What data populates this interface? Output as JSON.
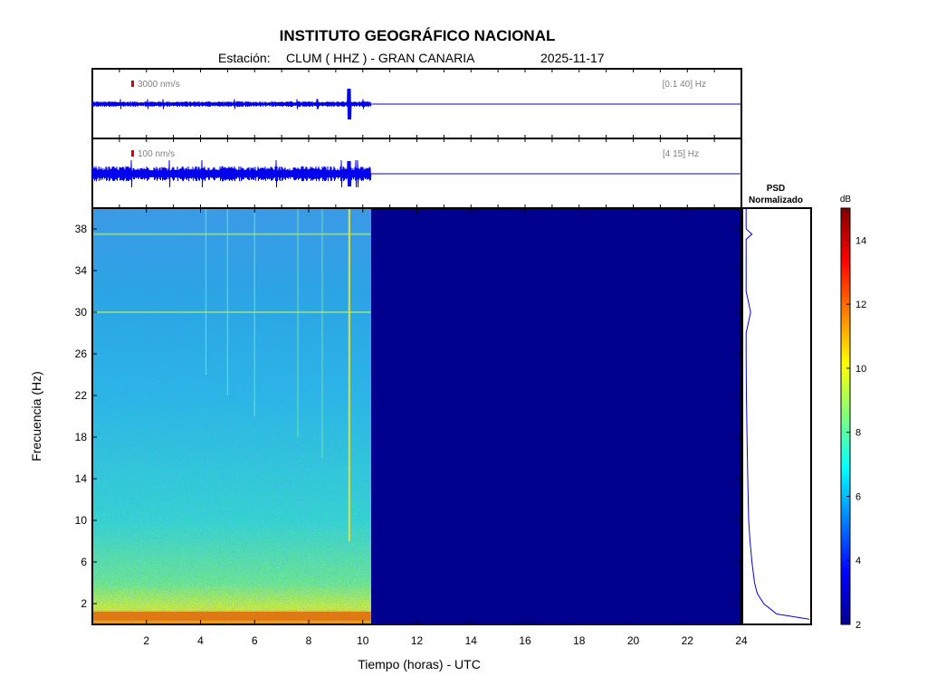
{
  "header": {
    "title": "INSTITUTO GEOGRÁFICO NACIONAL",
    "station_prefix": "Estación:",
    "station": "CLUM ( HHZ ) - GRAN CANARIA",
    "date": "2025-11-17"
  },
  "trace1": {
    "scale_label": "3000 nm/s",
    "band_label": "[0.1 40] Hz"
  },
  "trace2": {
    "scale_label": "100 nm/s",
    "band_label": "[4 15] Hz"
  },
  "psd": {
    "title_line1": "PSD",
    "title_line2": "Normalizado"
  },
  "colorbar": {
    "unit": "dB",
    "min": 2,
    "max": 15,
    "ticks": [
      "2",
      "4",
      "6",
      "8",
      "10",
      "12",
      "14"
    ]
  },
  "colors": {
    "trace": "#0000ee",
    "scale_marker": "#dd0000",
    "no_data": "#00008f"
  },
  "chart_data": {
    "type": "heatmap",
    "title": "INSTITUTO GEOGRÁFICO NACIONAL",
    "xlabel": "Tiempo (horas) - UTC",
    "ylabel": "Frecuencia  (Hz)",
    "xlim": [
      0,
      24
    ],
    "ylim": [
      0,
      40
    ],
    "xticks": [
      "2",
      "4",
      "6",
      "8",
      "10",
      "12",
      "14",
      "16",
      "18",
      "20",
      "22",
      "24"
    ],
    "yticks": [
      "2",
      "6",
      "10",
      "14",
      "18",
      "22",
      "26",
      "30",
      "34",
      "38"
    ],
    "data_end_hour": 10.3,
    "event_hour": 9.5,
    "noise_bands_hz": [
      37.5,
      30,
      0.8
    ],
    "psd_profile": {
      "freq_hz": [
        0.5,
        1,
        2,
        3,
        4,
        6,
        8,
        10,
        14,
        18,
        22,
        26,
        28,
        30,
        32,
        34,
        37,
        37.5,
        38,
        40
      ],
      "value": [
        1.0,
        0.5,
        0.3,
        0.2,
        0.16,
        0.12,
        0.09,
        0.07,
        0.055,
        0.045,
        0.035,
        0.03,
        0.03,
        0.1,
        0.03,
        0.03,
        0.03,
        0.12,
        0.03,
        0.03
      ]
    }
  }
}
